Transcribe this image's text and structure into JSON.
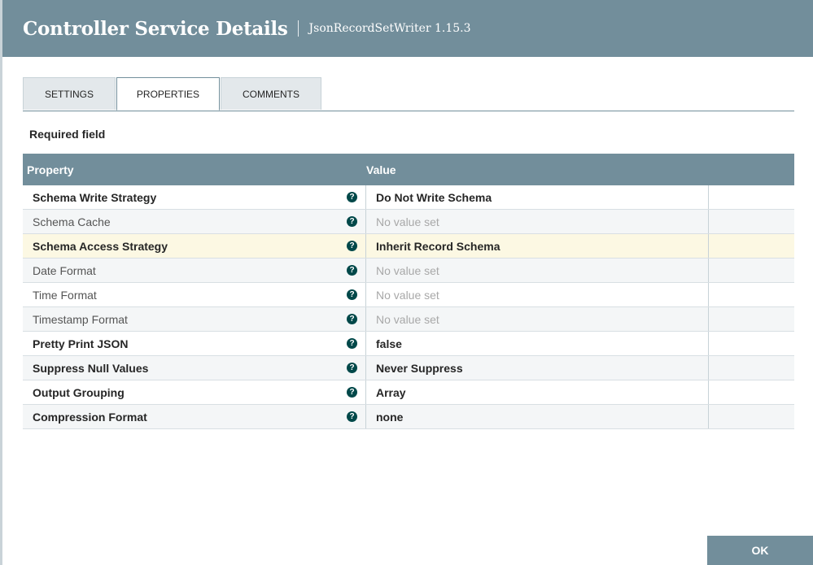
{
  "dialog": {
    "title": "Controller Service Details",
    "subtitle": "JsonRecordSetWriter 1.15.3"
  },
  "tabs": [
    {
      "label": "SETTINGS",
      "active": false
    },
    {
      "label": "PROPERTIES",
      "active": true
    },
    {
      "label": "COMMENTS",
      "active": false
    }
  ],
  "required_label": "Required field",
  "table": {
    "headers": {
      "property": "Property",
      "value": "Value"
    },
    "rows": [
      {
        "name": "Schema Write Strategy",
        "value": "Do Not Write Schema",
        "required": true,
        "set": true
      },
      {
        "name": "Schema Cache",
        "value": "No value set",
        "required": false,
        "set": false
      },
      {
        "name": "Schema Access Strategy",
        "value": "Inherit Record Schema",
        "required": true,
        "set": true,
        "selected": true
      },
      {
        "name": "Date Format",
        "value": "No value set",
        "required": false,
        "set": false
      },
      {
        "name": "Time Format",
        "value": "No value set",
        "required": false,
        "set": false
      },
      {
        "name": "Timestamp Format",
        "value": "No value set",
        "required": false,
        "set": false
      },
      {
        "name": "Pretty Print JSON",
        "value": "false",
        "required": true,
        "set": true
      },
      {
        "name": "Suppress Null Values",
        "value": "Never Suppress",
        "required": true,
        "set": true
      },
      {
        "name": "Output Grouping",
        "value": "Array",
        "required": true,
        "set": true
      },
      {
        "name": "Compression Format",
        "value": "none",
        "required": true,
        "set": true
      }
    ],
    "help_icon": "question-circle-icon",
    "help_glyph": "?"
  },
  "footer": {
    "ok_label": "OK"
  },
  "colors": {
    "header_bg": "#728e9b",
    "selected_row_bg": "#fcf8e3",
    "help_icon_bg": "#004849",
    "unset_text": "#a8a8a8"
  }
}
